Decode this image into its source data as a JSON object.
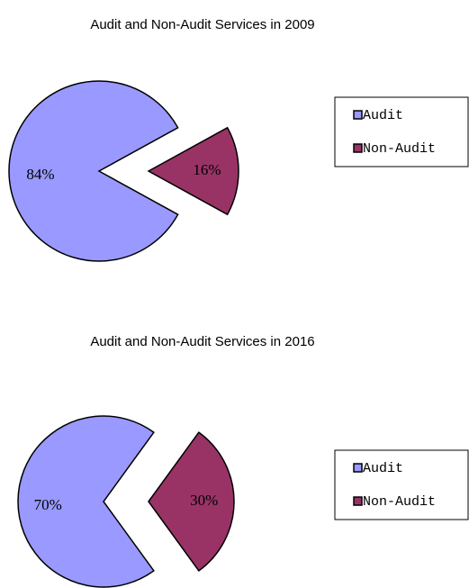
{
  "chart_data": [
    {
      "type": "pie",
      "title": "Audit and Non-Audit Services in 2009",
      "categories": [
        "Audit",
        "Non-Audit"
      ],
      "values": [
        84,
        16
      ],
      "value_labels": [
        "84%",
        "16%"
      ],
      "colors": [
        "#9999ff",
        "#993366"
      ],
      "legend": "right"
    },
    {
      "type": "pie",
      "title": "Audit and Non-Audit Services in 2016",
      "categories": [
        "Audit",
        "Non-Audit"
      ],
      "values": [
        70,
        30
      ],
      "value_labels": [
        "70%",
        "30%"
      ],
      "colors": [
        "#9999ff",
        "#993366"
      ],
      "legend": "right"
    }
  ]
}
